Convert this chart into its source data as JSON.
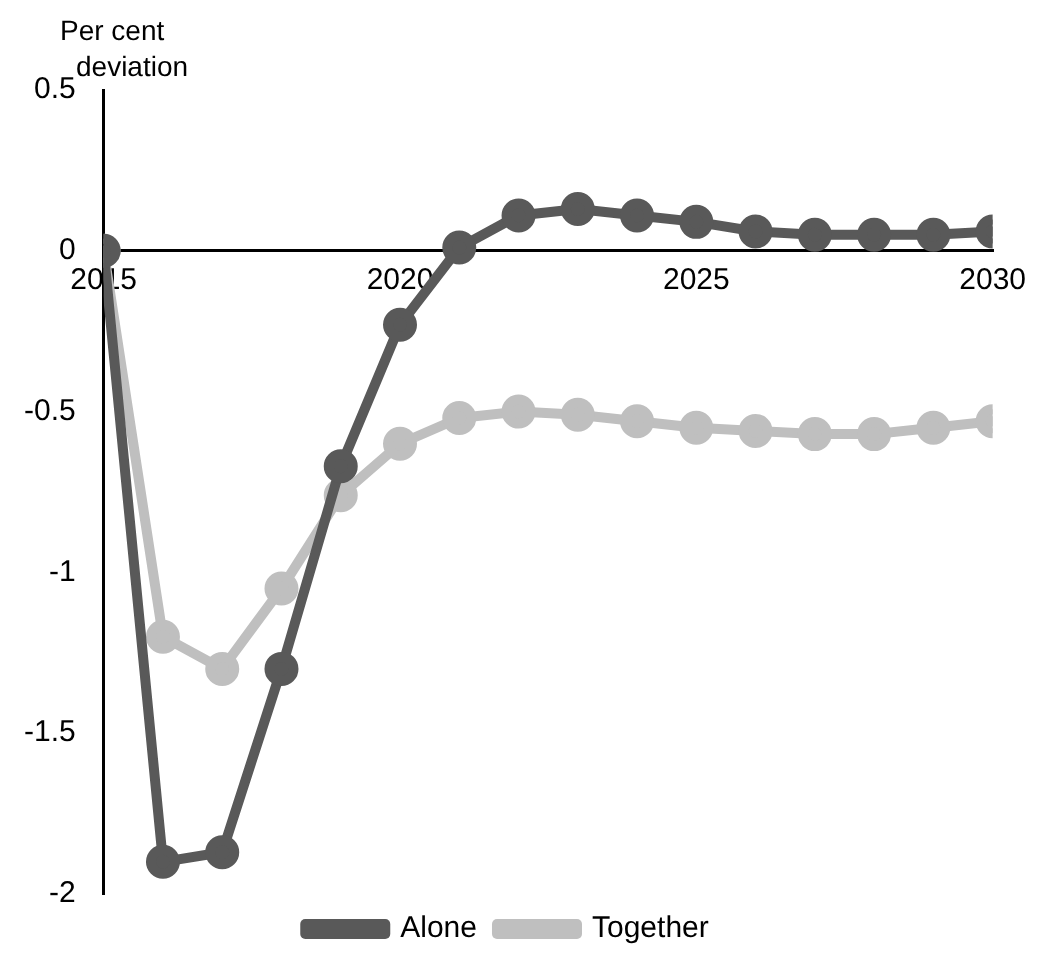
{
  "chart_data": {
    "type": "line",
    "ylabel": "Per cent deviation",
    "x": [
      2015,
      2016,
      2017,
      2018,
      2019,
      2020,
      2021,
      2022,
      2023,
      2024,
      2025,
      2026,
      2027,
      2028,
      2029,
      2030
    ],
    "series": [
      {
        "name": "Alone",
        "color": "#595959",
        "values": [
          0,
          -1.9,
          -1.87,
          -1.3,
          -0.67,
          -0.23,
          0.01,
          0.11,
          0.13,
          0.11,
          0.09,
          0.06,
          0.05,
          0.05,
          0.05,
          0.06
        ]
      },
      {
        "name": "Together",
        "color": "#bfbfbf",
        "values": [
          0,
          -1.2,
          -1.3,
          -1.05,
          -0.76,
          -0.6,
          -0.52,
          -0.5,
          -0.51,
          -0.53,
          -0.55,
          -0.56,
          -0.57,
          -0.57,
          -0.55,
          -0.53
        ]
      }
    ],
    "xlim": [
      2015,
      2030
    ],
    "xticks": [
      2015,
      2020,
      2025,
      2030
    ],
    "ylim": [
      -2,
      0.5
    ],
    "yticks": [
      -2,
      -1.5,
      -1,
      -0.5,
      0,
      0.5
    ],
    "grid": false,
    "legend": "bottom",
    "marker": "circle",
    "line_style": "solid"
  }
}
